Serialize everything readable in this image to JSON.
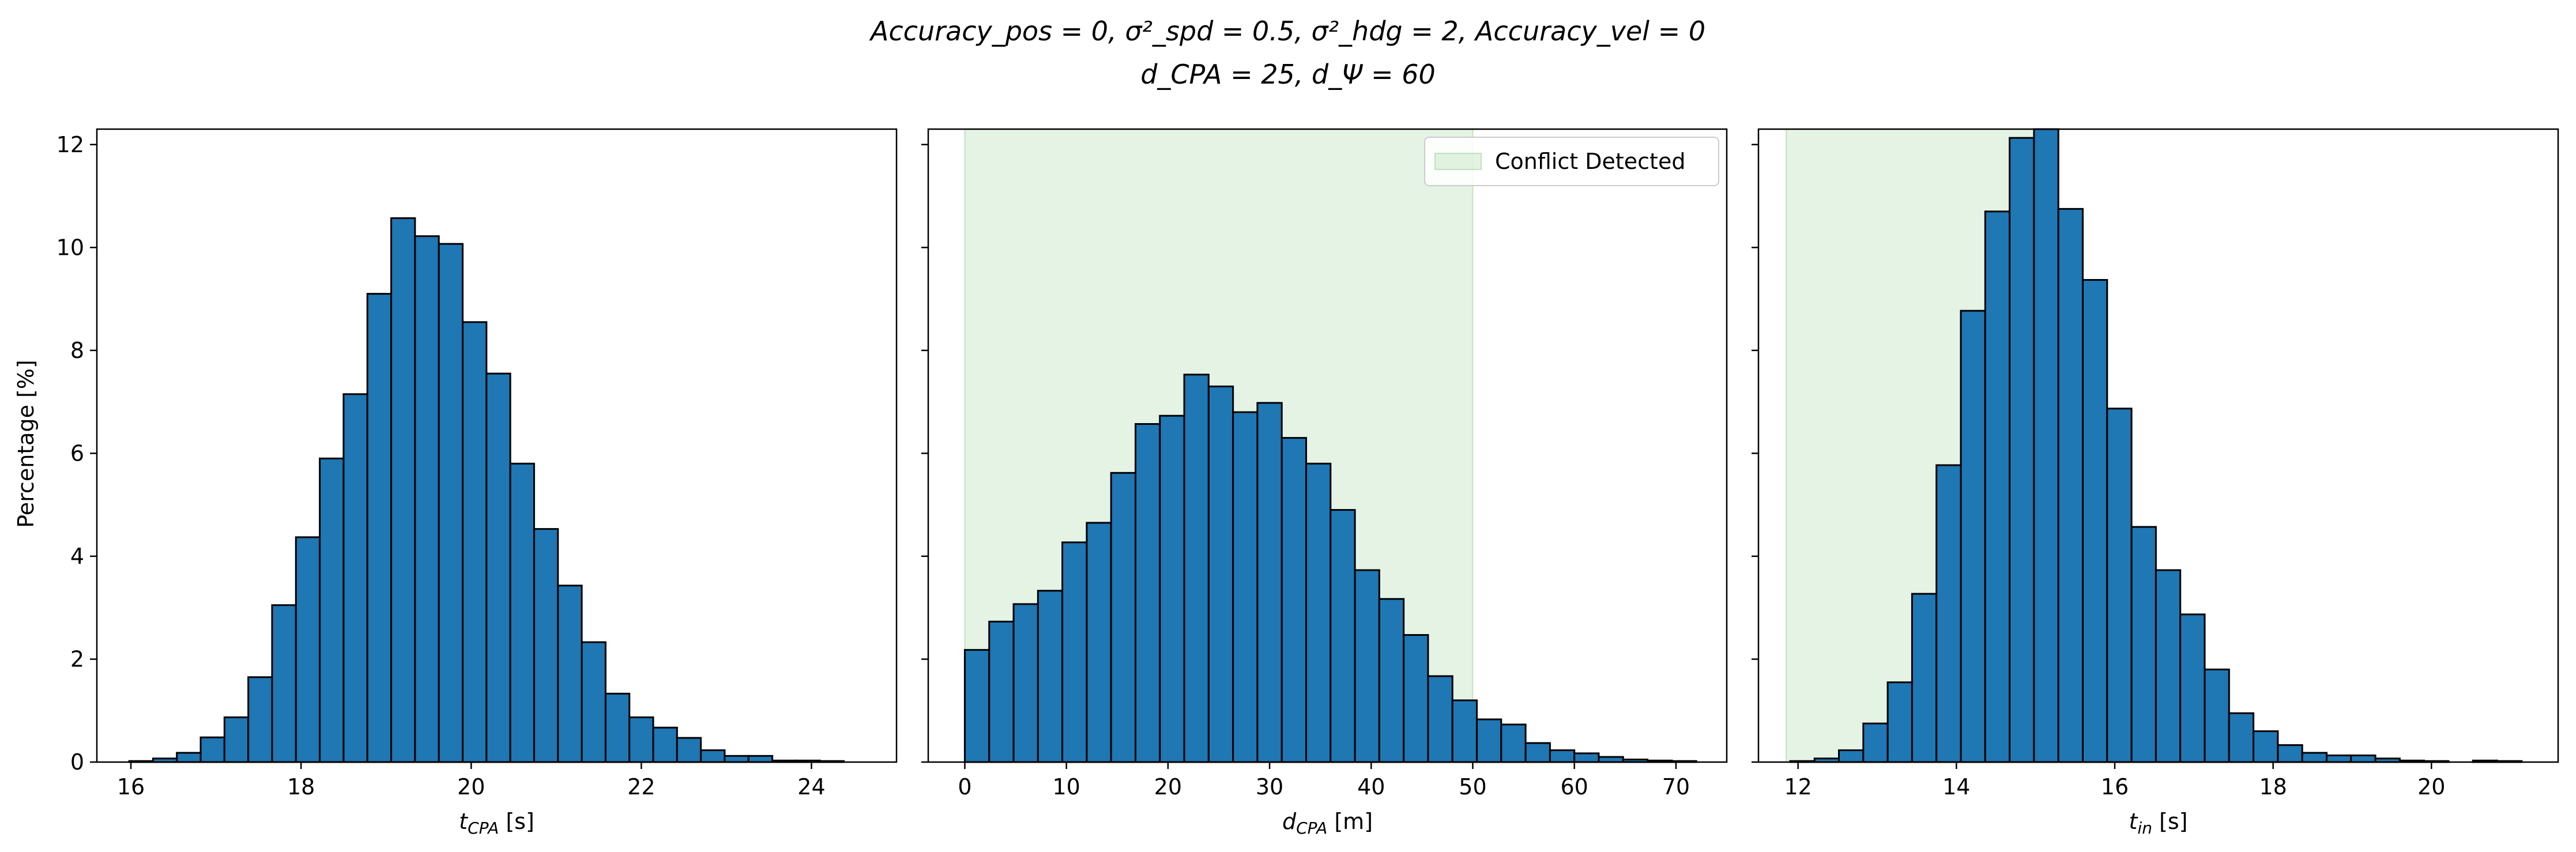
{
  "figure": {
    "title_line1": "Accuracy_pos = 0, σ²_spd = 0.5, σ²_hdg = 2, Accuracy_vel = 0",
    "title_line2": "d_CPA = 25, d_Ψ = 60",
    "ylabel": "Percentage [%]",
    "shared_y_ticks": [
      "0",
      "2",
      "4",
      "6",
      "8",
      "10",
      "12"
    ]
  },
  "colors": {
    "bar_fill": "#1f77b4",
    "bar_edge": "#000000",
    "conflict_region": "#2ca02c"
  },
  "chart_data": [
    {
      "type": "bar",
      "subtype": "histogram",
      "xlabel": "t_CPA [s]",
      "xlim": [
        15.6,
        25.0
      ],
      "ylim": [
        0,
        12.3
      ],
      "xticks": [
        16,
        18,
        20,
        22,
        24
      ],
      "yticks": [
        0,
        2,
        4,
        6,
        8,
        10,
        12
      ],
      "bin_start": 15.98,
      "bin_width": 0.28,
      "values": [
        0.02,
        0.07,
        0.18,
        0.48,
        0.87,
        1.65,
        3.05,
        4.37,
        5.9,
        7.15,
        9.1,
        10.57,
        10.22,
        10.07,
        8.55,
        7.55,
        5.8,
        4.53,
        3.43,
        2.33,
        1.33,
        0.87,
        0.67,
        0.47,
        0.23,
        0.12,
        0.12,
        0.03,
        0.03,
        0.02
      ],
      "legend": null
    },
    {
      "type": "bar",
      "subtype": "histogram",
      "xlabel": "d_CPA [m]",
      "xlim": [
        -3.6,
        75.0
      ],
      "ylim": [
        0,
        12.3
      ],
      "xticks": [
        0,
        10,
        20,
        30,
        40,
        50,
        60,
        70
      ],
      "yticks": [
        0,
        2,
        4,
        6,
        8,
        10,
        12
      ],
      "bin_start": 0.0,
      "bin_width": 2.4,
      "values": [
        2.18,
        2.73,
        3.07,
        3.33,
        4.27,
        4.65,
        5.62,
        6.57,
        6.73,
        7.53,
        7.3,
        6.8,
        6.98,
        6.3,
        5.8,
        4.9,
        3.73,
        3.17,
        2.47,
        1.67,
        1.2,
        0.83,
        0.73,
        0.37,
        0.23,
        0.17,
        0.1,
        0.05,
        0.03,
        0.02
      ],
      "shaded_region": {
        "x": [
          0,
          50
        ],
        "label": "Conflict Detected"
      },
      "legend": {
        "entries": [
          "Conflict Detected"
        ],
        "placement": "top-right"
      }
    },
    {
      "type": "bar",
      "subtype": "histogram",
      "xlabel": "t_in [s]",
      "xlim": [
        11.5,
        21.6
      ],
      "ylim": [
        0,
        12.3
      ],
      "xticks": [
        12,
        14,
        16,
        18,
        20
      ],
      "yticks": [
        0,
        2,
        4,
        6,
        8,
        10,
        12
      ],
      "bin_start": 11.9,
      "bin_width": 0.308,
      "values": [
        0.02,
        0.07,
        0.23,
        0.75,
        1.55,
        3.27,
        5.77,
        8.77,
        10.7,
        12.13,
        12.3,
        10.75,
        9.37,
        6.87,
        4.57,
        3.73,
        2.87,
        1.8,
        0.95,
        0.6,
        0.33,
        0.18,
        0.13,
        0.13,
        0.07,
        0.03,
        0.02,
        0.0,
        0.03,
        0.02
      ],
      "shaded_region": {
        "x": [
          11.85,
          15.0
        ],
        "label": ""
      },
      "legend": null
    }
  ]
}
